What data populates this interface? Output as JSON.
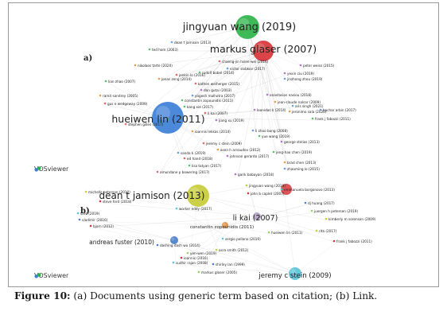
{
  "caption": {
    "label": "Figure 10:",
    "text": " (a) Documents using generic term based on citation; (b) Link."
  },
  "panel_a": {
    "letter": "a)",
    "logo": "VOSviewer",
    "big_labels": [
      {
        "text": "jingyuan wang (2019)",
        "color": "#2fb44a"
      },
      {
        "text": "markus glaser (2007)",
        "color": "#d8353a"
      },
      {
        "text": "hueiwen lin (2011)",
        "color": "#3d7fd8"
      }
    ],
    "small_labels": [
      "dean t jamison (2013)",
      "ted hom (2003)",
      "chaeng-jin hsien-wei (2016)",
      "peter weiss (2015)",
      "nikolaos tarte (2020)",
      "victor slobkov (2017)",
      "rudolf bobel (2014)",
      "jenkin lo (2016)",
      "yexin ciu (2019)",
      "jonas zeng (2014)",
      "jinzhong zhou (2019)",
      "lian zhao (2007)",
      "kathen weiherger (2015)",
      "dan gutai (2003)",
      "ramit sandrey (2005)",
      "yogesh malhotra (2017)",
      "constantin zopounidis (2011)",
      "gus e wedgeway (2009)",
      "anastasios nasiou (2018)",
      "jean-claude nalcor (2009)",
      "aris singh (2021)",
      "kang xie (2017)",
      "li kai (2007)",
      "leonidas k (2014)",
      "jeronimo sala (2020)",
      "bachar arbin (2017)",
      "frank j fabozzi (2011)",
      "stephen gilles (2017)",
      "jiang xu (2019)",
      "ioannis lekkas (2014)",
      "li zhao bong (2008)",
      "yue wang (2019)",
      "jeremy c stein (2009)",
      "george stelios (2013)",
      "asen h arnaudov (2012)",
      "sanda k (2019)",
      "jeng-hao chen (2019)",
      "ed hand (2018)",
      "johnson gerardo (2017)",
      "brad chen (2013)",
      "zhaoming lo (2015)",
      "lisa tatyan (2017)",
      "amundane p bowering (2017)",
      "garik babayan (2018)"
    ]
  },
  "panel_b": {
    "letter": "b)",
    "logo": "VOSviewer",
    "big_labels": [
      {
        "text": "dean t jamison (2013)",
        "color": "#c8cc3a"
      },
      {
        "text": "li kai (2007)",
        "color": "#b0a0c0"
      },
      {
        "text": "jeremy c stein (2009)",
        "color": "#5bc3d8"
      },
      {
        "text": "andreas fuster (2010)",
        "color": "#4a7fc9"
      },
      {
        "text": "constantin zopounidis (2011)",
        "color": "#e0914a"
      }
    ],
    "small_labels": [
      "jingyuan wang (2019)",
      "john b caplet (2007)",
      "emmanuela borgonovo (2013)",
      "dj huang (2017)",
      "juergen h petersen (2019)",
      "kimberly m sorenson (2009)",
      "frank j fabozzi (2011)",
      "worker eddy (2017)",
      "dashing dash wu (2014)",
      "yen-wen (2019)",
      "asra smith (2012)",
      "ioannis (2016)",
      "sudhir rajan (2008)",
      "shirley lan (1999)",
      "markus glaser (2005)",
      "michelle peterson (2010)",
      "steve ford (2018)",
      "saro (2019)",
      "vladimir (2016)",
      "hueiwen lin (2011)",
      "rita (2017)",
      "bjorn (2012)",
      "sergio pollano (2019)"
    ]
  }
}
